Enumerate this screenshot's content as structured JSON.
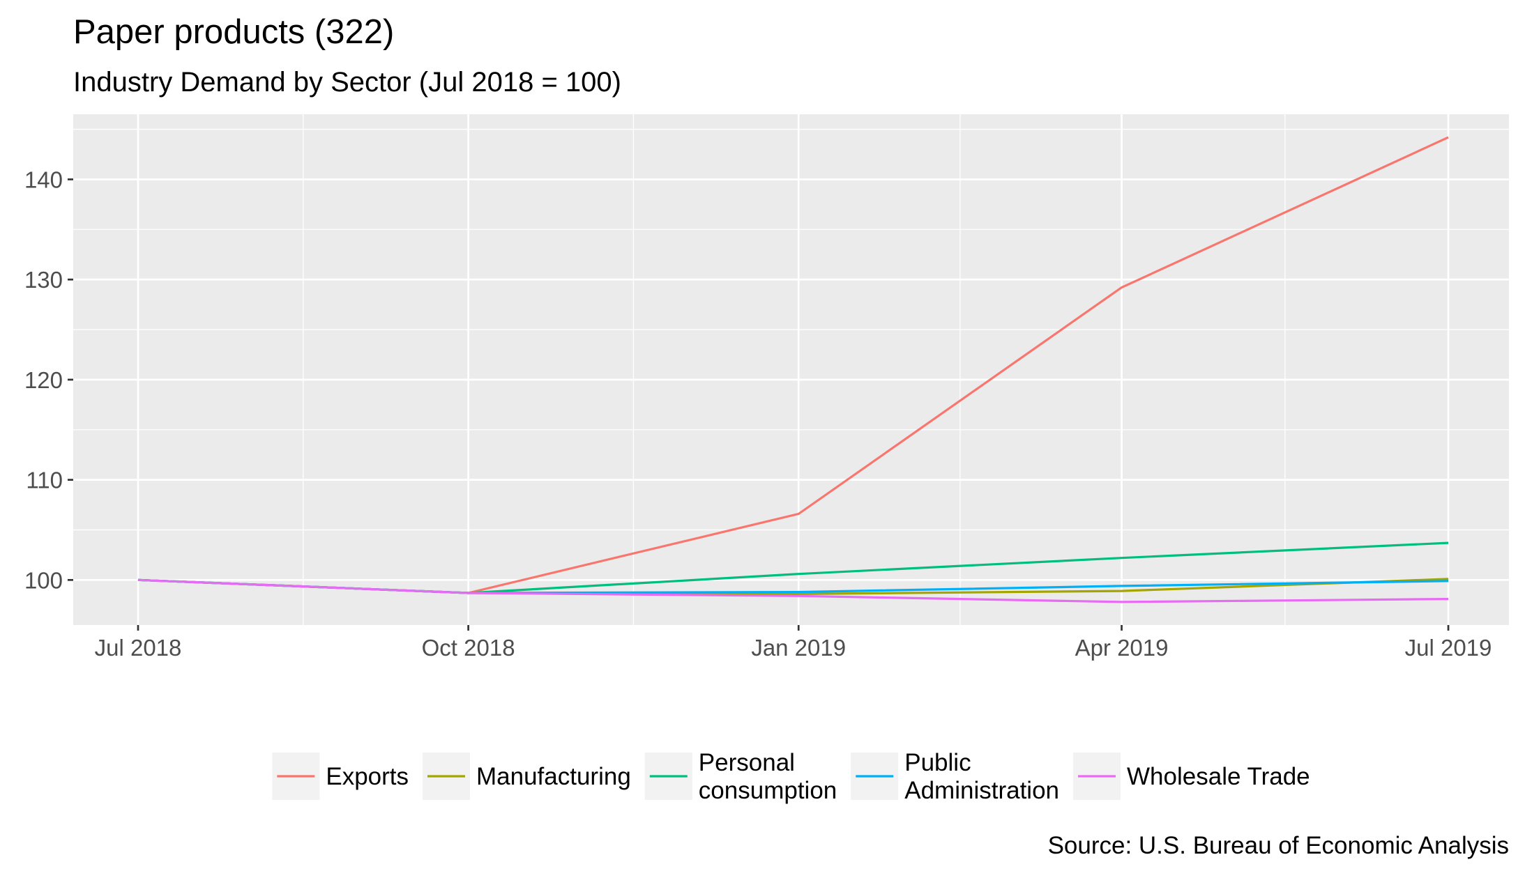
{
  "chart_data": {
    "type": "line",
    "title": "Paper products (322)",
    "subtitle": "Industry Demand by Sector (Jul 2018 = 100)",
    "caption": "Source: U.S. Bureau of Economic Analysis",
    "xlabel": "",
    "ylabel": "",
    "x": [
      "2018-07-01",
      "2018-10-01",
      "2019-01-01",
      "2019-04-01",
      "2019-07-01"
    ],
    "x_ticks": [
      "Jul 2018",
      "Oct 2018",
      "Jan 2019",
      "Apr 2019",
      "Jul 2019"
    ],
    "ylim": [
      95.5,
      146.5
    ],
    "y_ticks": [
      100,
      110,
      120,
      130,
      140
    ],
    "y_tick_labels": [
      "100",
      "110",
      "120",
      "130",
      "140"
    ],
    "grid": true,
    "legend_position": "bottom",
    "series": [
      {
        "name": "Exports",
        "color": "#F8766D",
        "values": [
          100,
          98.7,
          106.6,
          129.2,
          144.2
        ]
      },
      {
        "name": "Manufacturing",
        "color": "#A3A500",
        "values": [
          100,
          98.7,
          98.6,
          98.9,
          100.1
        ]
      },
      {
        "name": "Personal\nconsumption",
        "color": "#00BF7D",
        "values": [
          100,
          98.7,
          100.6,
          102.2,
          103.7
        ]
      },
      {
        "name": "Public\nAdministration",
        "color": "#00B0F6",
        "values": [
          100,
          98.7,
          98.8,
          99.4,
          99.9
        ]
      },
      {
        "name": "Wholesale Trade",
        "color": "#E76BF3",
        "values": [
          100,
          98.7,
          98.4,
          97.8,
          98.1
        ]
      }
    ]
  }
}
